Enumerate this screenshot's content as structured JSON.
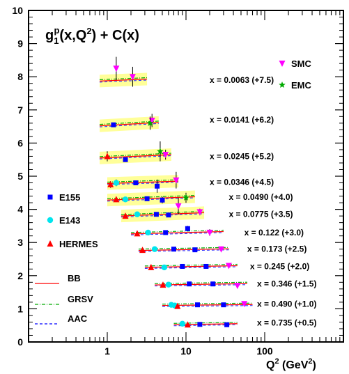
{
  "chart_data": {
    "type": "scatter",
    "title": "g₁ᵖ(x,Q²) + C(x)",
    "title_parts": {
      "main": "g",
      "sub": "1",
      "sup": "p",
      "rest1": "(x,Q",
      "sq": "2",
      "rest2": ") + C(x)"
    },
    "xlabel": "Q² (GeV²)",
    "xlabel_parts": {
      "q": "Q",
      "sq1": "2",
      "mid": " (GeV",
      "sq2": "2",
      "end": ")"
    },
    "ylabel": "",
    "xscale": "log",
    "xlim": [
      0.1,
      1000
    ],
    "ylim": [
      0,
      10
    ],
    "yticks": [
      0,
      1,
      2,
      3,
      4,
      5,
      6,
      7,
      8,
      9,
      10
    ],
    "xticks": [
      1,
      10,
      100
    ],
    "xtick_labels": [
      "1",
      "10",
      "100"
    ],
    "grid": false,
    "legend": [
      {
        "name": "SMC",
        "marker": "triangle-down",
        "color": "#ff00ff"
      },
      {
        "name": "EMC",
        "marker": "star",
        "color": "#00aa00"
      },
      {
        "name": "E155",
        "marker": "square",
        "color": "#0000ff"
      },
      {
        "name": "E143",
        "marker": "circle",
        "color": "#00e5ee"
      },
      {
        "name": "HERMES",
        "marker": "triangle-up",
        "color": "#ff0000"
      },
      {
        "name": "BB",
        "line": "solid",
        "color": "#ff0000"
      },
      {
        "name": "GRSV",
        "line": "dashdot",
        "color": "#00aa00"
      },
      {
        "name": "AAC",
        "line": "dashed",
        "color": "#0000ff"
      }
    ],
    "bins": [
      {
        "label": "x = 0.0063 (+7.5)",
        "label_x": 20,
        "label_y": 7.9,
        "band": true,
        "q2_range": [
          0.8,
          3.2
        ],
        "curve": [
          7.87,
          7.93
        ],
        "points": [
          {
            "set": "SMC",
            "q2": 1.3,
            "y": 8.25,
            "err": 0.35
          },
          {
            "set": "SMC",
            "q2": 2.1,
            "y": 8.0,
            "err": 0.3
          }
        ]
      },
      {
        "label": "x = 0.0141 (+6.2)",
        "label_x": 20,
        "label_y": 6.7,
        "band": true,
        "q2_range": [
          0.8,
          4.5
        ],
        "curve": [
          6.52,
          6.62
        ],
        "points": [
          {
            "set": "E155",
            "q2": 1.2,
            "y": 6.55,
            "err": 0.05
          },
          {
            "set": "SMC",
            "q2": 3.7,
            "y": 6.68,
            "err": 0.2
          },
          {
            "set": "EMC",
            "q2": 3.5,
            "y": 6.6,
            "err": 0.2
          }
        ]
      },
      {
        "label": "x = 0.0245 (+5.2)",
        "label_x": 20,
        "label_y": 5.6,
        "band": true,
        "q2_range": [
          0.8,
          6.5
        ],
        "curve": [
          5.55,
          5.65
        ],
        "points": [
          {
            "set": "HERMES",
            "q2": 1.0,
            "y": 5.6,
            "err": 0.15
          },
          {
            "set": "E155",
            "q2": 1.7,
            "y": 5.5,
            "err": 0.05
          },
          {
            "set": "EMC",
            "q2": 4.7,
            "y": 5.75,
            "err": 0.3
          },
          {
            "set": "SMC",
            "q2": 5.5,
            "y": 5.65,
            "err": 0.15
          }
        ]
      },
      {
        "label": "x = 0.0346 (+4.5)",
        "label_x": 20,
        "label_y": 4.82,
        "band": true,
        "q2_range": [
          1.0,
          8.0
        ],
        "curve": [
          4.78,
          4.85
        ],
        "points": [
          {
            "set": "E143",
            "q2": 1.3,
            "y": 4.8,
            "err": 0.1
          },
          {
            "set": "HERMES",
            "q2": 1.1,
            "y": 4.75,
            "err": 0.1
          },
          {
            "set": "E155",
            "q2": 2.3,
            "y": 4.8,
            "err": 0.05
          },
          {
            "set": "E155",
            "q2": 4.3,
            "y": 4.7,
            "err": 0.2
          },
          {
            "set": "SMC",
            "q2": 7.5,
            "y": 4.88,
            "err": 0.25
          }
        ]
      },
      {
        "label": "x = 0.0490 (+4.0)",
        "label_x": 35,
        "label_y": 4.37,
        "band": true,
        "q2_range": [
          1.0,
          13
        ],
        "curve": [
          4.28,
          4.38
        ],
        "points": [
          {
            "set": "HERMES",
            "q2": 1.3,
            "y": 4.3,
            "err": 0.08
          },
          {
            "set": "E143",
            "q2": 1.7,
            "y": 4.3,
            "err": 0.08
          },
          {
            "set": "E155",
            "q2": 3.2,
            "y": 4.32,
            "err": 0.05
          },
          {
            "set": "E155",
            "q2": 5.0,
            "y": 4.28,
            "err": 0.1
          },
          {
            "set": "SMC",
            "q2": 8.0,
            "y": 4.1,
            "err": 0.25
          },
          {
            "set": "EMC",
            "q2": 10.0,
            "y": 4.35,
            "err": 0.15
          }
        ]
      },
      {
        "label": "x = 0.0775 (+3.5)",
        "label_x": 35,
        "label_y": 3.86,
        "band": true,
        "q2_range": [
          1.5,
          17
        ],
        "curve": [
          3.8,
          3.9
        ],
        "points": [
          {
            "set": "HERMES",
            "q2": 1.7,
            "y": 3.8,
            "err": 0.05
          },
          {
            "set": "E143",
            "q2": 2.4,
            "y": 3.85,
            "err": 0.06
          },
          {
            "set": "E155",
            "q2": 4.2,
            "y": 3.85,
            "err": 0.05
          },
          {
            "set": "E155",
            "q2": 6.0,
            "y": 3.83,
            "err": 0.05
          },
          {
            "set": "SMC",
            "q2": 15.0,
            "y": 3.92,
            "err": 0.1
          }
        ]
      },
      {
        "label": "x = 0.122 (+3.0)",
        "label_x": 55,
        "label_y": 3.3,
        "band": false,
        "q2_range": [
          2.0,
          30
        ],
        "curve": [
          3.26,
          3.33
        ],
        "points": [
          {
            "set": "HERMES",
            "q2": 2.4,
            "y": 3.27,
            "err": 0.05
          },
          {
            "set": "E143",
            "q2": 3.3,
            "y": 3.3,
            "err": 0.05
          },
          {
            "set": "E155",
            "q2": 5.5,
            "y": 3.3,
            "err": 0.05
          },
          {
            "set": "E155",
            "q2": 10.5,
            "y": 3.42,
            "err": 0.08
          },
          {
            "set": "SMC",
            "q2": 20.0,
            "y": 3.3,
            "err": 0.1
          }
        ]
      },
      {
        "label": "x = 0.173 (+2.5)",
        "label_x": 60,
        "label_y": 2.8,
        "band": false,
        "q2_range": [
          2.5,
          35
        ],
        "curve": [
          2.76,
          2.81
        ],
        "points": [
          {
            "set": "HERMES",
            "q2": 2.8,
            "y": 2.77,
            "err": 0.05
          },
          {
            "set": "E143",
            "q2": 4.0,
            "y": 2.8,
            "err": 0.05
          },
          {
            "set": "E155",
            "q2": 7.0,
            "y": 2.8,
            "err": 0.05
          },
          {
            "set": "E155",
            "q2": 13.0,
            "y": 2.78,
            "err": 0.05
          },
          {
            "set": "SMC",
            "q2": 28.0,
            "y": 2.8,
            "err": 0.08
          }
        ]
      },
      {
        "label": "x = 0.245 (+2.0)",
        "label_x": 65,
        "label_y": 2.28,
        "band": false,
        "q2_range": [
          3.0,
          45
        ],
        "curve": [
          2.25,
          2.3
        ],
        "points": [
          {
            "set": "HERMES",
            "q2": 3.6,
            "y": 2.25,
            "err": 0.05
          },
          {
            "set": "E143",
            "q2": 5.3,
            "y": 2.25,
            "err": 0.05
          },
          {
            "set": "E155",
            "q2": 9.0,
            "y": 2.28,
            "err": 0.05
          },
          {
            "set": "E155",
            "q2": 18.0,
            "y": 2.28,
            "err": 0.05
          },
          {
            "set": "SMC",
            "q2": 35.0,
            "y": 2.3,
            "err": 0.07
          }
        ]
      },
      {
        "label": "x = 0.346 (+1.5)",
        "label_x": 80,
        "label_y": 1.75,
        "band": false,
        "q2_range": [
          4.0,
          60
        ],
        "curve": [
          1.72,
          1.76
        ],
        "points": [
          {
            "set": "HERMES",
            "q2": 5.1,
            "y": 1.72,
            "err": 0.05
          },
          {
            "set": "E143",
            "q2": 6.0,
            "y": 1.73,
            "err": 0.05
          },
          {
            "set": "E155",
            "q2": 11.0,
            "y": 1.75,
            "err": 0.05
          },
          {
            "set": "E155",
            "q2": 22.0,
            "y": 1.75,
            "err": 0.05
          },
          {
            "set": "SMC",
            "q2": 45.0,
            "y": 1.7,
            "err": 0.07
          }
        ]
      },
      {
        "label": "x = 0.490 (+1.0)",
        "label_x": 80,
        "label_y": 1.15,
        "band": false,
        "q2_range": [
          5.0,
          70
        ],
        "curve": [
          1.1,
          1.13
        ],
        "points": [
          {
            "set": "E143",
            "q2": 6.5,
            "y": 1.12,
            "err": 0.04
          },
          {
            "set": "E143",
            "q2": 7.2,
            "y": 1.1,
            "err": 0.04
          },
          {
            "set": "HERMES",
            "q2": 7.8,
            "y": 1.08,
            "err": 0.05
          },
          {
            "set": "E155",
            "q2": 14.0,
            "y": 1.12,
            "err": 0.04
          },
          {
            "set": "E155",
            "q2": 30.0,
            "y": 1.12,
            "err": 0.05
          },
          {
            "set": "SMC",
            "q2": 55.0,
            "y": 1.15,
            "err": 0.07
          }
        ]
      },
      {
        "label": "x = 0.735 (+0.5)",
        "label_x": 80,
        "label_y": 0.58,
        "band": false,
        "q2_range": [
          7.0,
          45
        ],
        "curve": [
          0.52,
          0.55
        ],
        "points": [
          {
            "set": "E143",
            "q2": 9.0,
            "y": 0.55,
            "err": 0.04
          },
          {
            "set": "HERMES",
            "q2": 10.5,
            "y": 0.52,
            "err": 0.04
          },
          {
            "set": "E155",
            "q2": 15.0,
            "y": 0.53,
            "err": 0.04
          },
          {
            "set": "E155",
            "q2": 33.0,
            "y": 0.52,
            "err": 0.05
          }
        ]
      }
    ]
  }
}
